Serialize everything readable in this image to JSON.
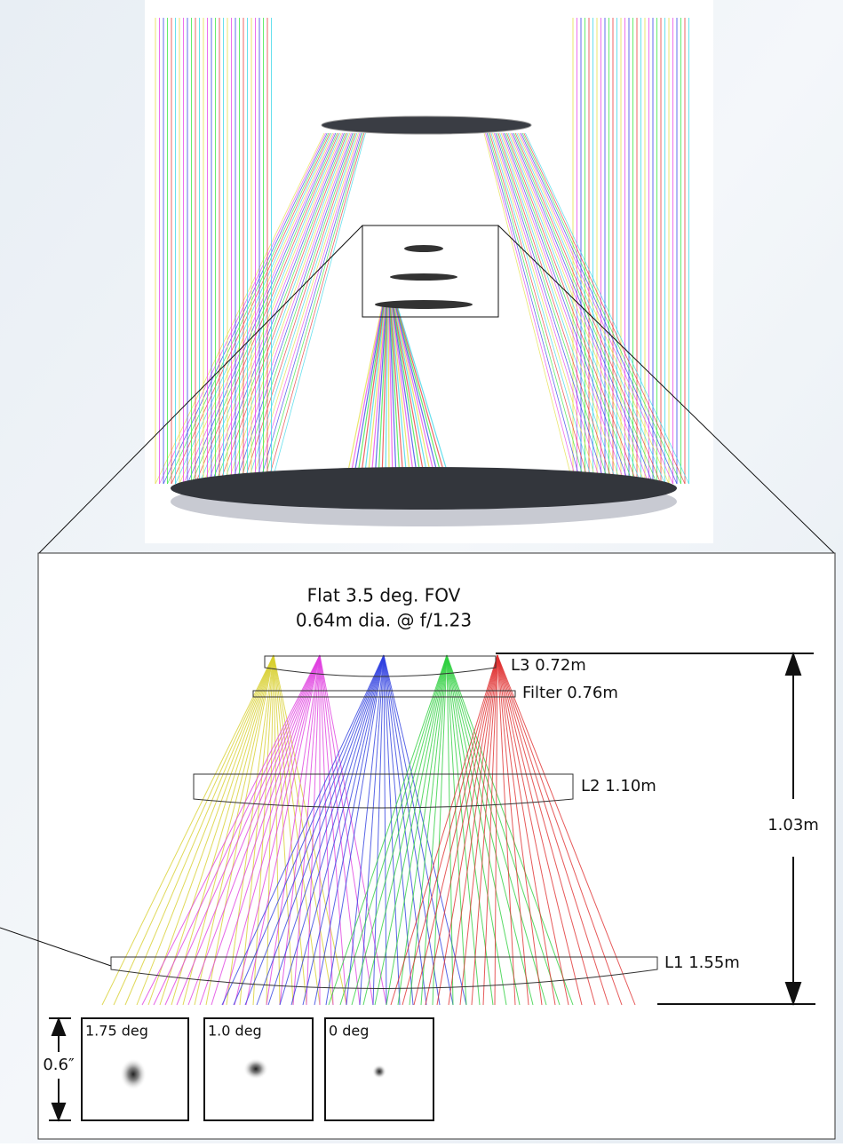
{
  "caption": {
    "line1": "Flat 3.5 deg. FOV",
    "line2": "0.64m dia. @ f/1.23"
  },
  "lenses": [
    {
      "label": "L3 0.72m"
    },
    {
      "label": "Filter 0.76m"
    },
    {
      "label": "L2 1.10m"
    },
    {
      "label": "L1 1.55m"
    }
  ],
  "dimension": "1.03m",
  "spots": [
    {
      "label": "1.75 deg"
    },
    {
      "label": "1.0 deg"
    },
    {
      "label": "0 deg"
    }
  ],
  "scale": "0.6″"
}
